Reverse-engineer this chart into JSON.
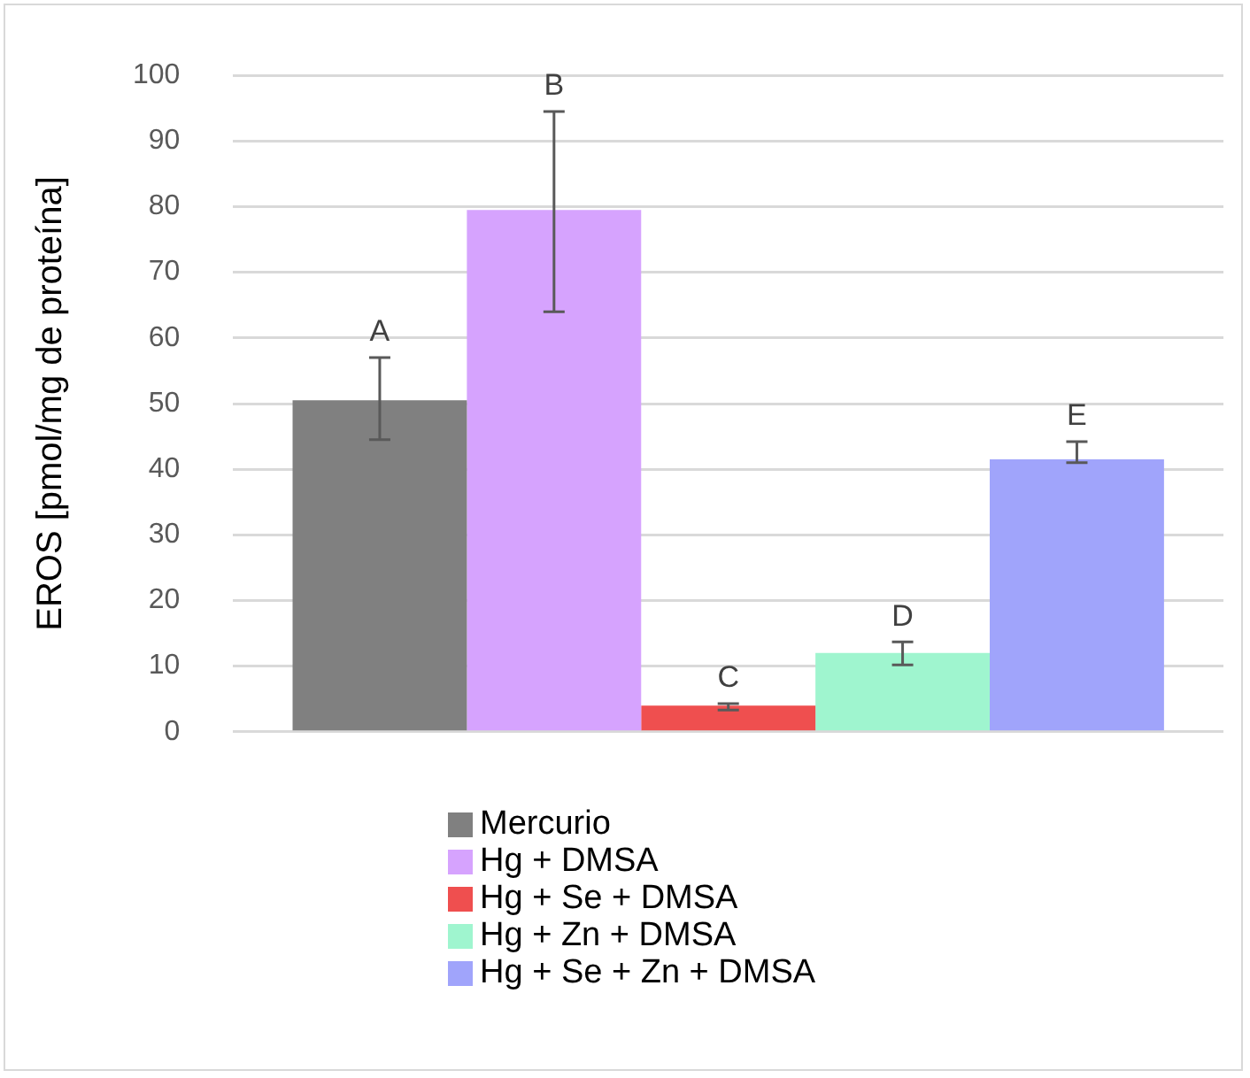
{
  "chart_data": {
    "type": "bar",
    "ylabel": "EROS [pmol/mg de proteína]",
    "categories": [
      null
    ],
    "series": [
      {
        "name": "Mercurio",
        "color": "#808080",
        "values": [
          50.5
        ],
        "errors": [
          [
            44.5,
            57
          ]
        ]
      },
      {
        "name": "Hg + DMSA",
        "color": "#d6a3fe",
        "values": [
          79.5
        ],
        "errors": [
          [
            64,
            94.5
          ]
        ]
      },
      {
        "name": "Hg + Se + DMSA",
        "color": "#ef4f4f",
        "values": [
          4
        ],
        "errors": [
          [
            3.3,
            4.3
          ]
        ]
      },
      {
        "name": "Hg + Zn + DMSA",
        "color": "#9ff5cf",
        "values": [
          12
        ],
        "errors": [
          [
            10.2,
            13.7
          ]
        ]
      },
      {
        "name": "Hg + Se + Zn + DMSA",
        "color": "#a0a4fb",
        "values": [
          41.5
        ],
        "errors": [
          [
            41,
            44.2
          ]
        ]
      }
    ],
    "annotations": [
      "A",
      "B",
      "C",
      "D",
      "E"
    ],
    "ylim": [
      0,
      100
    ],
    "yticks": [
      0,
      10,
      20,
      30,
      40,
      50,
      60,
      70,
      80,
      90,
      100
    ],
    "grid": "y",
    "legend": "bottom"
  }
}
